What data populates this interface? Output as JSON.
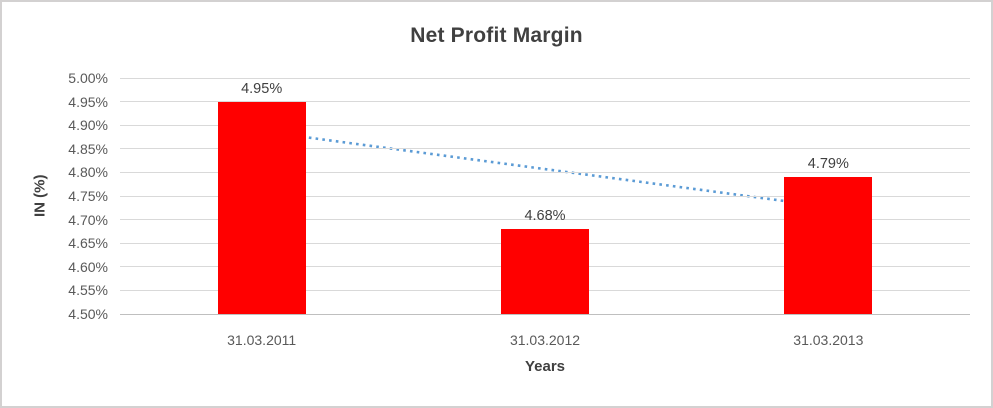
{
  "chart_data": {
    "type": "bar",
    "title": "Net Profit Margin",
    "xlabel": "Years",
    "ylabel": "IN (%)",
    "categories": [
      "31.03.2011",
      "31.03.2012",
      "31.03.2013"
    ],
    "values": [
      4.95,
      4.68,
      4.79
    ],
    "data_labels": [
      "4.95%",
      "4.68%",
      "4.79%"
    ],
    "ylim": [
      4.5,
      5.0
    ],
    "ytick_step": 0.05,
    "ytick_labels": [
      "5.00%",
      "4.95%",
      "4.90%",
      "4.85%",
      "4.80%",
      "4.75%",
      "4.70%",
      "4.65%",
      "4.60%",
      "4.55%",
      "4.50%"
    ],
    "grid": true,
    "legend": "none",
    "trendline": {
      "type": "linear",
      "style": "dotted",
      "start_value": 4.887,
      "end_value": 4.727
    }
  },
  "colors": {
    "bar": "#ff0000",
    "trendline": "#5b9bd5",
    "gridline": "#d9d9d9",
    "axis_line": "#bfbfbf",
    "tick_text": "#595959",
    "title_text": "#404040",
    "frame_border": "#d3d1d1"
  }
}
